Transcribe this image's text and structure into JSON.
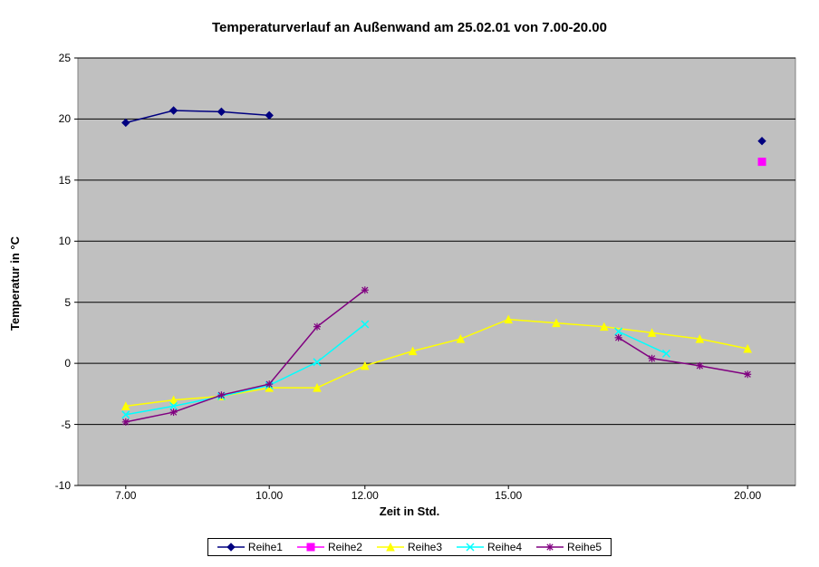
{
  "chart": {
    "type": "line",
    "title": "Temperaturverlauf an Außenwand am 25.02.01 von  7.00-20.00",
    "ylabel": "Temperatur in °C",
    "xlabel": "Zeit in Std.",
    "plot_bg": "#c0c0c0",
    "page_bg": "#ffffff",
    "grid_color": "#000000",
    "border_color": "#808080",
    "xlim": [
      6,
      21
    ],
    "ylim": [
      -10,
      25
    ],
    "yticks": [
      -10,
      -5,
      0,
      5,
      10,
      15,
      20,
      25
    ],
    "xticks": [
      {
        "v": 7,
        "label": "7.00"
      },
      {
        "v": 10,
        "label": "10.00"
      },
      {
        "v": 12,
        "label": "12.00"
      },
      {
        "v": 15,
        "label": "15.00"
      },
      {
        "v": 20,
        "label": "20.00"
      }
    ],
    "title_fontsize": 15,
    "label_fontsize": 13,
    "tick_fontsize": 12,
    "line_width": 1.5,
    "marker_size": 4,
    "series": [
      {
        "name": "Reihe1",
        "color": "#000080",
        "marker": "diamond",
        "segments": [
          {
            "x": [
              7,
              8,
              9,
              10
            ],
            "y": [
              19.7,
              20.7,
              20.6,
              20.3
            ]
          },
          {
            "x": [
              20.3
            ],
            "y": [
              18.2
            ],
            "points_only": true
          }
        ]
      },
      {
        "name": "Reihe2",
        "color": "#ff00ff",
        "marker": "square",
        "segments": [
          {
            "x": [
              20.3
            ],
            "y": [
              16.5
            ],
            "points_only": true
          }
        ]
      },
      {
        "name": "Reihe3",
        "color": "#ffff00",
        "marker": "triangle",
        "segments": [
          {
            "x": [
              7,
              8,
              9,
              10,
              11,
              12,
              13,
              14,
              15,
              16,
              17,
              18,
              19,
              20
            ],
            "y": [
              -3.5,
              -3.0,
              -2.7,
              -2.0,
              -2.0,
              -0.2,
              1.0,
              2.0,
              3.6,
              3.3,
              3.0,
              2.5,
              2.0,
              1.2
            ]
          }
        ]
      },
      {
        "name": "Reihe4",
        "color": "#00ffff",
        "marker": "x",
        "segments": [
          {
            "x": [
              7,
              8,
              9,
              10,
              11,
              12
            ],
            "y": [
              -4.2,
              -3.5,
              -2.7,
              -1.8,
              0.1,
              3.2
            ]
          },
          {
            "x": [
              17.3,
              18.3
            ],
            "y": [
              2.6,
              0.8
            ]
          }
        ]
      },
      {
        "name": "Reihe5",
        "color": "#800080",
        "marker": "star",
        "segments": [
          {
            "x": [
              7,
              8,
              9,
              10,
              11,
              12
            ],
            "y": [
              -4.8,
              -4.0,
              -2.6,
              -1.7,
              3.0,
              6.0
            ]
          },
          {
            "x": [
              17.3,
              18,
              19,
              20
            ],
            "y": [
              2.1,
              0.4,
              -0.2,
              -0.9
            ]
          }
        ]
      }
    ],
    "legend_labels": [
      "Reihe1",
      "Reihe2",
      "Reihe3",
      "Reihe4",
      "Reihe5"
    ]
  }
}
